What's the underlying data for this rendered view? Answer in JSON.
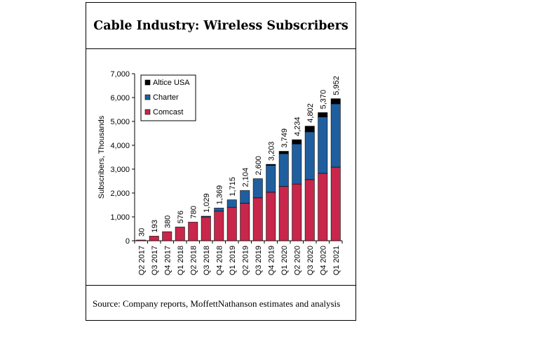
{
  "title": "Cable Industry: Wireless Subscribers",
  "source": "Source: Company reports, MoffettNathanson estimates and analysis",
  "colors": {
    "Altice USA": "#000000",
    "Charter": "#1f5fa0",
    "Comcast": "#c8264a"
  },
  "chart_data": {
    "type": "bar",
    "stacked": true,
    "ylabel": "Subscribers, Thousands",
    "xlabel": "",
    "ylim": [
      0,
      7000
    ],
    "yticks": [
      0,
      1000,
      2000,
      3000,
      4000,
      5000,
      6000,
      7000
    ],
    "ytick_labels": [
      "0",
      "1,000",
      "2,000",
      "3,000",
      "4,000",
      "5,000",
      "6,000",
      "7,000"
    ],
    "categories": [
      "Q2 2017",
      "Q3 2017",
      "Q4 2017",
      "Q1 2018",
      "Q2 2018",
      "Q3 2018",
      "Q4 2018",
      "Q1 2019",
      "Q2 2019",
      "Q3 2019",
      "Q4 2019",
      "Q1 2020",
      "Q2 2020",
      "Q3 2020",
      "Q4 2020",
      "Q1 2021"
    ],
    "series": [
      {
        "name": "Comcast",
        "values": [
          30,
          193,
          380,
          576,
          780,
          1000,
          1241,
          1405,
          1574,
          1799,
          2033,
          2276,
          2377,
          2563,
          2825,
          3087
        ]
      },
      {
        "name": "Charter",
        "values": [
          0,
          0,
          0,
          0,
          0,
          29,
          128,
          310,
          530,
          801,
          1125,
          1373,
          1680,
          2000,
          2360,
          2650
        ]
      },
      {
        "name": "Altice USA",
        "values": [
          0,
          0,
          0,
          0,
          0,
          0,
          0,
          0,
          0,
          0,
          45,
          100,
          177,
          239,
          185,
          215
        ]
      }
    ],
    "totals": [
      30,
      193,
      380,
      576,
      780,
      1029,
      1369,
      1715,
      2104,
      2600,
      3203,
      3749,
      4234,
      4802,
      5370,
      5952
    ],
    "total_labels": [
      "30",
      "193",
      "380",
      "576",
      "780",
      "1,029",
      "1,369",
      "1,715",
      "2,104",
      "2,600",
      "3,203",
      "3,749",
      "4,234",
      "4,802",
      "5,370",
      "5,952"
    ],
    "legend": {
      "entries": [
        "Altice USA",
        "Charter",
        "Comcast"
      ],
      "placement": "top-left"
    },
    "grid": false
  }
}
